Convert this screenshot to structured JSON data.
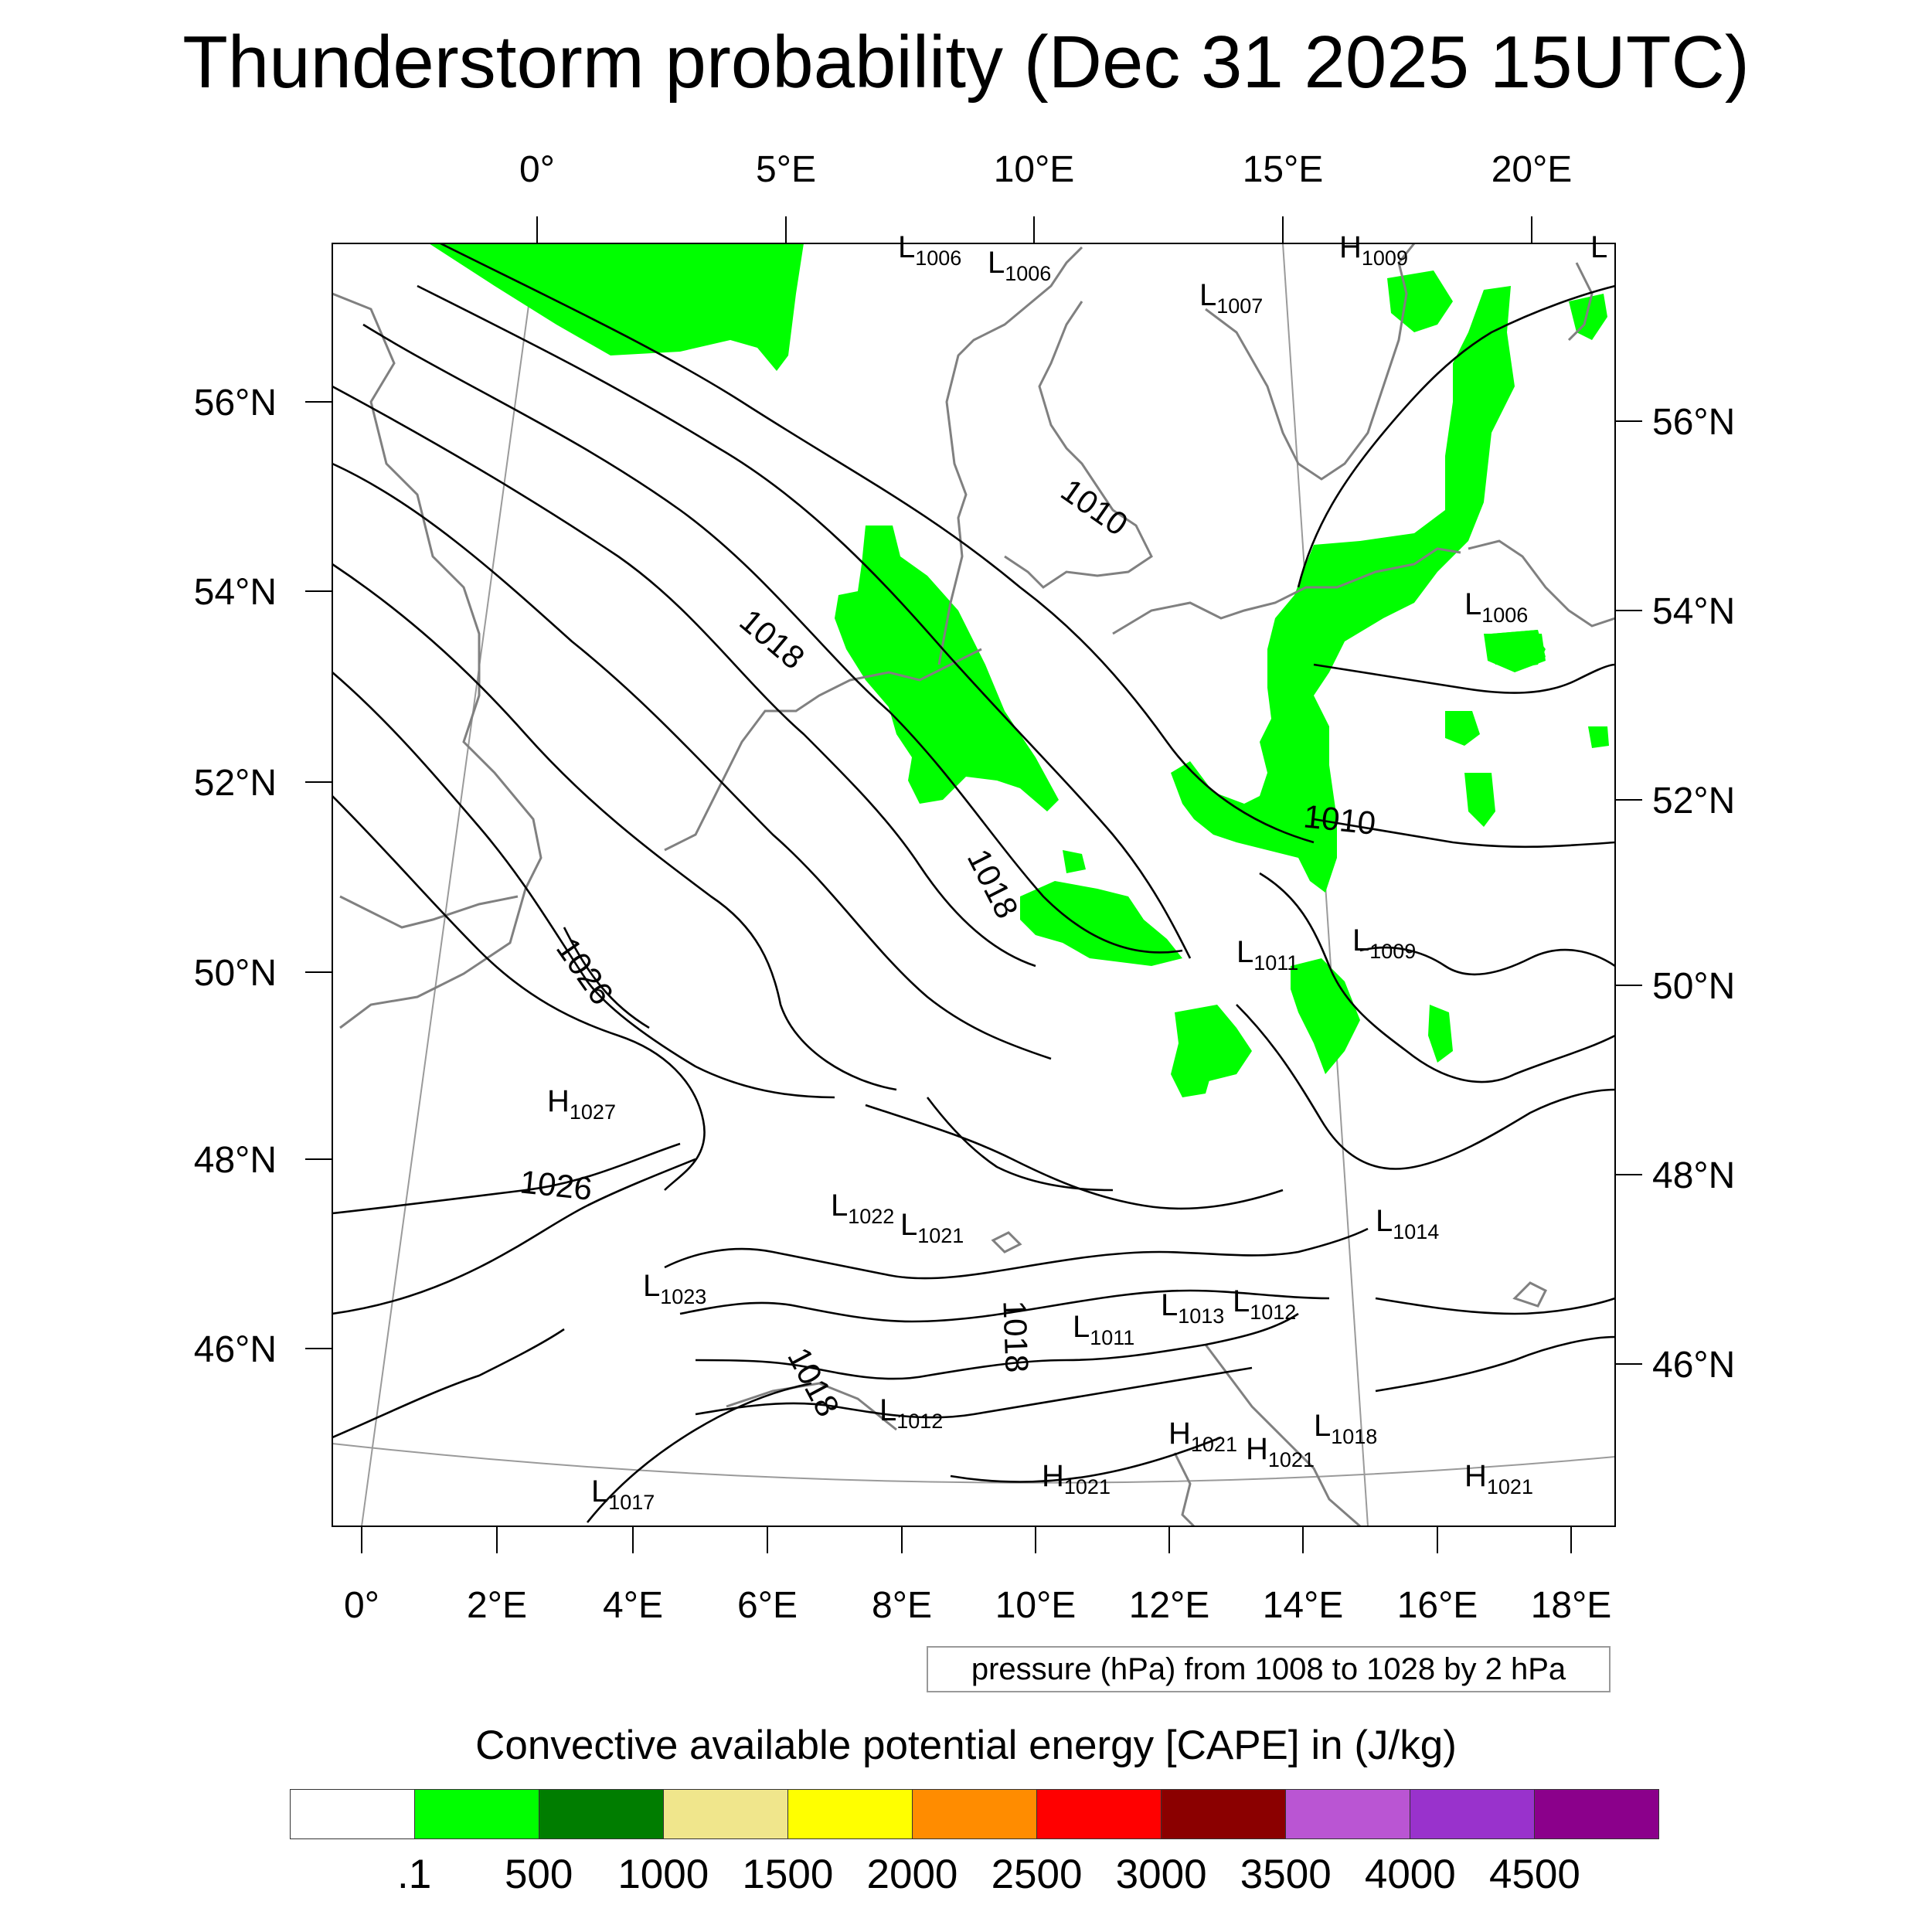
{
  "title": "Thunderstorm probability (Dec 31 2025 15UTC)",
  "map": {
    "region": "Central Europe",
    "top_lon_labels": [
      "0°",
      "5°E",
      "10°E",
      "15°E",
      "20°E"
    ],
    "bottom_lon_labels": [
      "0°",
      "2°E",
      "4°E",
      "6°E",
      "8°E",
      "10°E",
      "12°E",
      "14°E",
      "16°E",
      "18°E"
    ],
    "left_lat_labels": [
      "56°N",
      "54°N",
      "52°N",
      "50°N",
      "48°N",
      "46°N"
    ],
    "right_lat_labels": [
      "56°N",
      "54°N",
      "52°N",
      "50°N",
      "48°N",
      "46°N"
    ],
    "pressure_centers": [
      {
        "type": "L",
        "value": "1006"
      },
      {
        "type": "L",
        "value": "1006"
      },
      {
        "type": "H",
        "value": "1009"
      },
      {
        "type": "L",
        "value": ""
      },
      {
        "type": "L",
        "value": "1007"
      },
      {
        "type": "L",
        "value": "1006"
      },
      {
        "type": "L",
        "value": "1011"
      },
      {
        "type": "L",
        "value": "1009"
      },
      {
        "type": "H",
        "value": "1027"
      },
      {
        "type": "L",
        "value": "1022"
      },
      {
        "type": "L",
        "value": "1021"
      },
      {
        "type": "L",
        "value": "1014"
      },
      {
        "type": "L",
        "value": "1023"
      },
      {
        "type": "L",
        "value": "1013"
      },
      {
        "type": "L",
        "value": "1012"
      },
      {
        "type": "L",
        "value": "1011"
      },
      {
        "type": "L",
        "value": "1012"
      },
      {
        "type": "H",
        "value": "1021"
      },
      {
        "type": "H",
        "value": "1021"
      },
      {
        "type": "L",
        "value": "1018"
      },
      {
        "type": "H",
        "value": "1021"
      },
      {
        "type": "H",
        "value": "1021"
      },
      {
        "type": "L",
        "value": "1017"
      }
    ],
    "isobar_labels": [
      "1010",
      "1018",
      "1010",
      "1018",
      "1026",
      "1026",
      "1018",
      "1018"
    ],
    "colors": {
      "cape_fill": "#00ff00",
      "isobar": "#000000",
      "coastline": "#808080",
      "graticule": "#9a9a9a"
    }
  },
  "legend": {
    "contour_info": "pressure (hPa) from 1008 to 1028 by 2 hPa"
  },
  "colorbar": {
    "title": "Convective available potential energy [CAPE] in (J/kg)",
    "labels": [
      ".1",
      "500",
      "1000",
      "1500",
      "2000",
      "2500",
      "3000",
      "3500",
      "4000",
      "4500"
    ],
    "colors": [
      "#ffffff",
      "#00ff00",
      "#007d00",
      "#f0e68c",
      "#ffff00",
      "#ff8c00",
      "#ff0000",
      "#8b0000",
      "#ba55d3",
      "#9932cc",
      "#8b008b"
    ]
  }
}
